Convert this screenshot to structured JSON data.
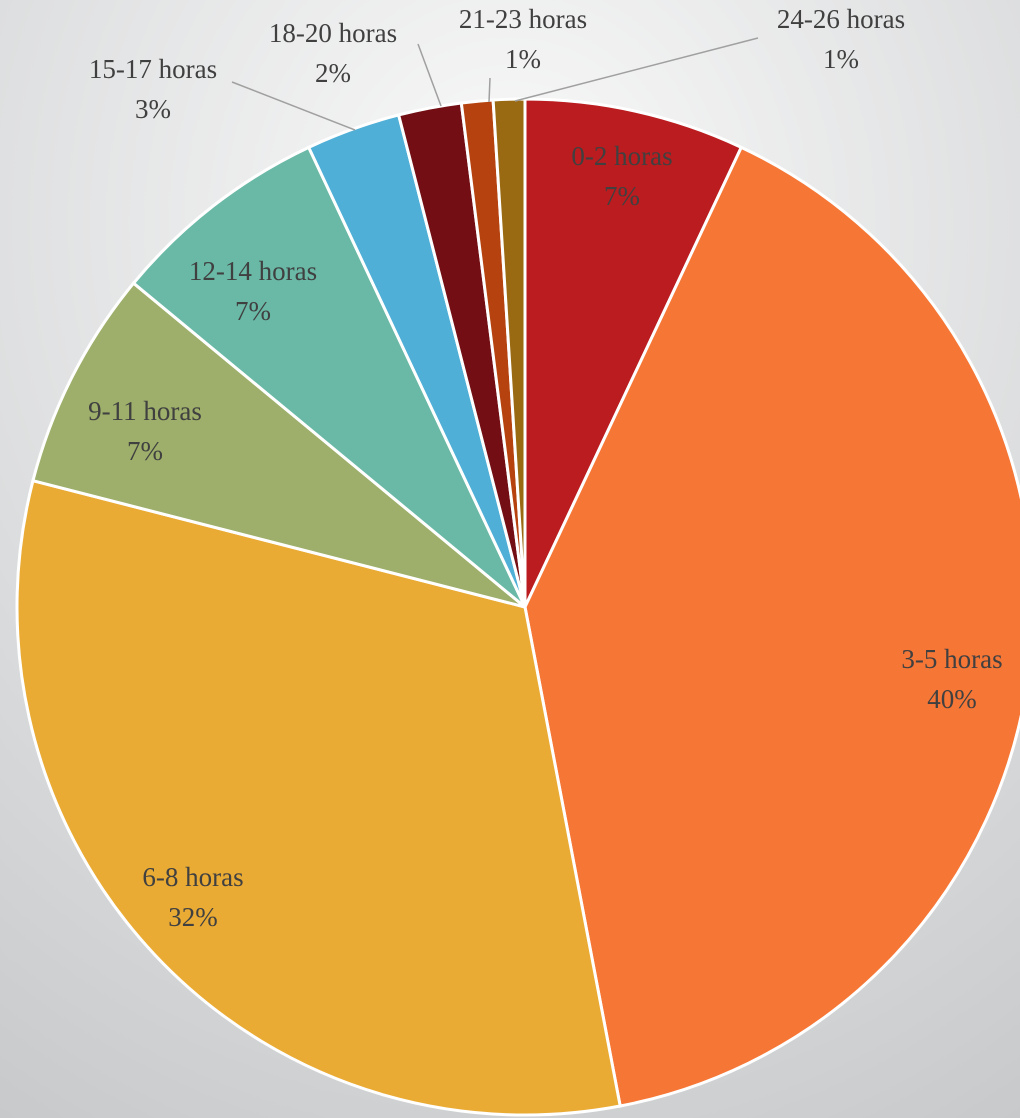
{
  "chart_data": {
    "type": "pie",
    "categories": [
      "0-2 horas",
      "3-5 horas",
      "6-8 horas",
      "9-11 horas",
      "12-14 horas",
      "15-17 horas",
      "18-20 horas",
      "21-23 horas",
      "24-26 horas"
    ],
    "values": [
      7,
      40,
      32,
      7,
      7,
      3,
      2,
      1,
      1
    ],
    "value_labels": [
      "7%",
      "40%",
      "32%",
      "7%",
      "7%",
      "3%",
      "2%",
      "1%",
      "1%"
    ],
    "colors": [
      "#bb1c1f",
      "#f67636",
      "#eaab35",
      "#9daf6a",
      "#69b9a6",
      "#50afd6",
      "#730f14",
      "#b6430f",
      "#9a6a13"
    ]
  }
}
